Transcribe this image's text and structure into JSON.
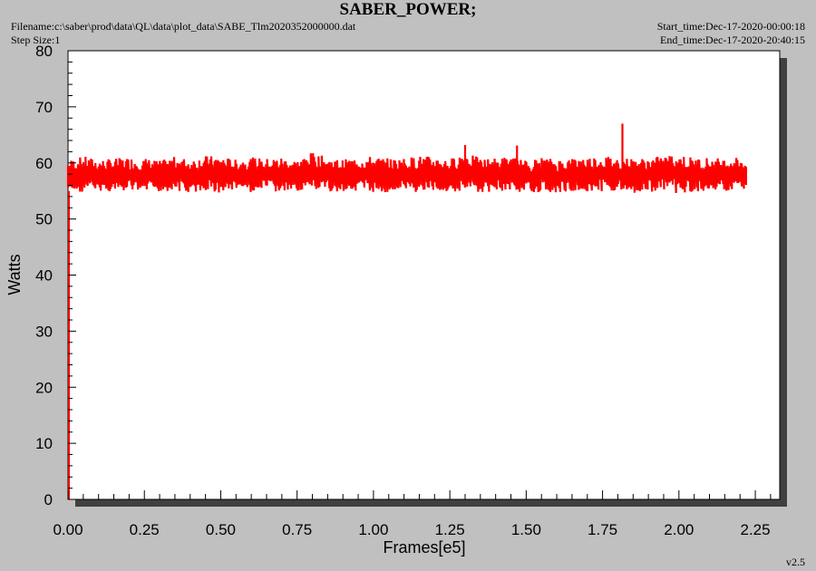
{
  "header": {
    "title": "SABER_POWER;",
    "filename": "Filename:c:\\saber\\prod\\data\\QL\\data\\plot_data\\SABE_Tlm2020352000000.dat",
    "step_size": "Step Size:1",
    "start_time": "Start_time:Dec-17-2020-00:00:18",
    "end_time": "End_time:Dec-17-2020-20:40:15"
  },
  "footer": {
    "version": "v2.5"
  },
  "colors": {
    "series": "#ff0000",
    "plot_bg": "#ffffff",
    "frame_bg": "#c0c0c0",
    "shadow": "#404040"
  },
  "chart_data": {
    "type": "line",
    "title": "SABER_POWER;",
    "xlabel": "Frames[e5]",
    "ylabel": "Watts",
    "xlim": [
      0,
      2.33
    ],
    "ylim": [
      0,
      80
    ],
    "x_ticks": [
      "0.00",
      "0.25",
      "0.50",
      "0.75",
      "1.00",
      "1.25",
      "1.50",
      "1.75",
      "2.00",
      "2.25"
    ],
    "y_ticks": [
      "0",
      "10",
      "20",
      "30",
      "40",
      "50",
      "60",
      "70",
      "80"
    ],
    "grid": false,
    "series": [
      {
        "color": "#ff0000",
        "x": [
          0.0,
          0.05,
          0.1,
          0.15,
          0.2,
          0.25,
          0.3,
          0.35,
          0.4,
          0.45,
          0.5,
          0.55,
          0.6,
          0.65,
          0.7,
          0.75,
          0.8,
          0.85,
          0.9,
          0.95,
          1.0,
          1.05,
          1.1,
          1.15,
          1.2,
          1.25,
          1.3,
          1.35,
          1.4,
          1.45,
          1.5,
          1.55,
          1.6,
          1.65,
          1.7,
          1.75,
          1.8,
          1.85,
          1.9,
          1.95,
          2.0,
          2.05,
          2.1,
          2.15,
          2.2,
          2.22
        ],
        "y_min": [
          54.5,
          54.8,
          55.0,
          54.7,
          55.0,
          54.6,
          54.8,
          55.1,
          54.5,
          54.9,
          54.6,
          55.2,
          54.7,
          54.9,
          54.5,
          55.0,
          55.0,
          54.8,
          54.9,
          55.1,
          54.6,
          54.8,
          55.0,
          54.7,
          54.9,
          54.8,
          55.0,
          54.6,
          54.9,
          55.0,
          54.7,
          54.8,
          54.5,
          55.0,
          54.8,
          54.9,
          55.1,
          54.6,
          54.8,
          55.0,
          54.5,
          54.9,
          54.8,
          55.0,
          55.1,
          54.9
        ],
        "y_max": [
          60.5,
          61.2,
          60.6,
          60.8,
          61.0,
          60.9,
          60.4,
          61.1,
          60.7,
          61.3,
          61.2,
          60.6,
          61.0,
          60.8,
          61.1,
          60.5,
          61.9,
          60.9,
          60.6,
          61.0,
          61.2,
          60.8,
          60.9,
          61.3,
          61.1,
          60.7,
          62.0,
          60.8,
          60.9,
          61.2,
          60.4,
          61.0,
          60.7,
          60.9,
          61.1,
          61.3,
          61.0,
          60.8,
          60.9,
          61.3,
          61.6,
          60.9,
          61.0,
          60.8,
          61.2,
          60.6
        ]
      }
    ],
    "spikes": [
      {
        "x": 1.3,
        "y": 63.2
      },
      {
        "x": 1.47,
        "y": 63.1
      },
      {
        "x": 1.815,
        "y": 67.0
      }
    ]
  }
}
